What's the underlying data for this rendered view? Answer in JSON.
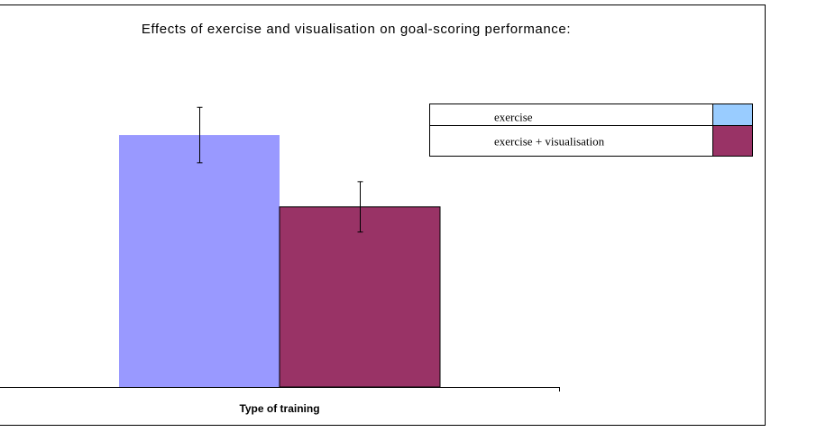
{
  "chart_data": {
    "type": "bar",
    "title": "Effects of exercise and visualisation on goal-scoring performance:",
    "xlabel": "Type of training",
    "ylabel": "",
    "categories": [
      "Type of training"
    ],
    "series": [
      {
        "name": "exercise",
        "values": [
          10
        ],
        "error": [
          1.1
        ],
        "color": "#9999ff",
        "legend_swatch_color": "#99ccff"
      },
      {
        "name": "exercise + visualisation",
        "values": [
          7.15
        ],
        "error": [
          1.0
        ],
        "color": "#993366",
        "legend_swatch_color": "#993366"
      }
    ],
    "ylim": [
      0,
      15.36
    ],
    "grid": false,
    "legend_position": "right"
  }
}
